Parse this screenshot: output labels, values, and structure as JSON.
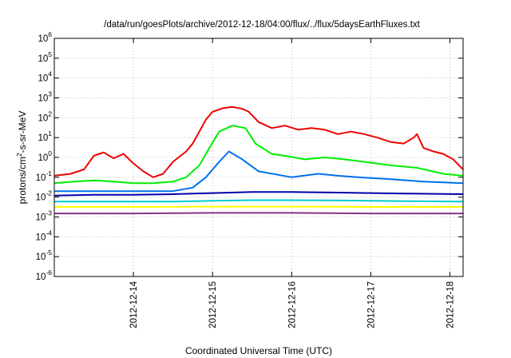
{
  "chart_data": {
    "type": "line",
    "title": "/data/run/goesPlots/archive/2012-12-18/04:00/flux/../flux/5daysEarthFluxes.txt",
    "xlabel": "Coordinated Universal Time (UTC)",
    "ylabel": "protons/cm²-s-sr-MeV",
    "xlim": [
      "2012-12-13 00:00",
      "2012-12-18 04:00"
    ],
    "x_ticks": [
      "2012-12-14",
      "2012-12-15",
      "2012-12-16",
      "2012-12-17",
      "2012-12-18"
    ],
    "yscale": "log",
    "ylim": [
      1e-06,
      1000000
    ],
    "y_ticks": [
      "10-6",
      "10-5",
      "10-4",
      "10-3",
      "10-2",
      "10-1",
      "100",
      "101",
      "102",
      "103",
      "104",
      "105",
      "106"
    ],
    "grid": true,
    "series": [
      {
        "color": "#ee0000",
        "points": [
          [
            "2012-12-13 00:00",
            0.12
          ],
          [
            "2012-12-13 05:00",
            0.15
          ],
          [
            "2012-12-13 09:00",
            0.25
          ],
          [
            "2012-12-13 12:00",
            1.2
          ],
          [
            "2012-12-13 15:00",
            1.8
          ],
          [
            "2012-12-13 18:00",
            0.9
          ],
          [
            "2012-12-13 21:00",
            1.5
          ],
          [
            "2012-12-14 00:00",
            0.5
          ],
          [
            "2012-12-14 03:00",
            0.2
          ],
          [
            "2012-12-14 06:00",
            0.1
          ],
          [
            "2012-12-14 09:00",
            0.15
          ],
          [
            "2012-12-14 12:00",
            0.6
          ],
          [
            "2012-12-14 16:00",
            2
          ],
          [
            "2012-12-14 18:00",
            5
          ],
          [
            "2012-12-14 20:00",
            20
          ],
          [
            "2012-12-14 22:00",
            80
          ],
          [
            "2012-12-15 00:00",
            200
          ],
          [
            "2012-12-15 03:00",
            300
          ],
          [
            "2012-12-15 06:00",
            350
          ],
          [
            "2012-12-15 09:00",
            280
          ],
          [
            "2012-12-15 11:00",
            200
          ],
          [
            "2012-12-15 14:00",
            60
          ],
          [
            "2012-12-15 18:00",
            30
          ],
          [
            "2012-12-15 22:00",
            40
          ],
          [
            "2012-12-16 02:00",
            25
          ],
          [
            "2012-12-16 06:00",
            30
          ],
          [
            "2012-12-16 10:00",
            25
          ],
          [
            "2012-12-16 14:00",
            15
          ],
          [
            "2012-12-16 18:00",
            20
          ],
          [
            "2012-12-16 22:00",
            15
          ],
          [
            "2012-12-17 02:00",
            10
          ],
          [
            "2012-12-17 06:00",
            6
          ],
          [
            "2012-12-17 10:00",
            5
          ],
          [
            "2012-12-17 13:00",
            10
          ],
          [
            "2012-12-17 14:00",
            15
          ],
          [
            "2012-12-17 16:00",
            3
          ],
          [
            "2012-12-17 19:00",
            2
          ],
          [
            "2012-12-17 22:00",
            1.5
          ],
          [
            "2012-12-18 01:00",
            0.8
          ],
          [
            "2012-12-18 04:00",
            0.25
          ]
        ]
      },
      {
        "color": "#00ee00",
        "points": [
          [
            "2012-12-13 00:00",
            0.05
          ],
          [
            "2012-12-13 06:00",
            0.06
          ],
          [
            "2012-12-13 12:00",
            0.07
          ],
          [
            "2012-12-13 18:00",
            0.06
          ],
          [
            "2012-12-14 00:00",
            0.05
          ],
          [
            "2012-12-14 06:00",
            0.05
          ],
          [
            "2012-12-14 12:00",
            0.06
          ],
          [
            "2012-12-14 16:00",
            0.1
          ],
          [
            "2012-12-14 20:00",
            0.4
          ],
          [
            "2012-12-14 23:00",
            3
          ],
          [
            "2012-12-15 02:00",
            20
          ],
          [
            "2012-12-15 06:00",
            40
          ],
          [
            "2012-12-15 10:00",
            30
          ],
          [
            "2012-12-15 13:00",
            5
          ],
          [
            "2012-12-15 18:00",
            1.5
          ],
          [
            "2012-12-15 22:00",
            1.2
          ],
          [
            "2012-12-16 04:00",
            0.8
          ],
          [
            "2012-12-16 10:00",
            1
          ],
          [
            "2012-12-16 16:00",
            0.8
          ],
          [
            "2012-12-16 22:00",
            0.6
          ],
          [
            "2012-12-17 06:00",
            0.4
          ],
          [
            "2012-12-17 14:00",
            0.3
          ],
          [
            "2012-12-17 22:00",
            0.15
          ],
          [
            "2012-12-18 04:00",
            0.12
          ]
        ]
      },
      {
        "color": "#0070ee",
        "points": [
          [
            "2012-12-13 00:00",
            0.02
          ],
          [
            "2012-12-13 06:00",
            0.02
          ],
          [
            "2012-12-13 12:00",
            0.02
          ],
          [
            "2012-12-13 18:00",
            0.02
          ],
          [
            "2012-12-14 00:00",
            0.02
          ],
          [
            "2012-12-14 06:00",
            0.02
          ],
          [
            "2012-12-14 12:00",
            0.02
          ],
          [
            "2012-12-14 18:00",
            0.03
          ],
          [
            "2012-12-14 22:00",
            0.1
          ],
          [
            "2012-12-15 02:00",
            0.6
          ],
          [
            "2012-12-15 05:00",
            2
          ],
          [
            "2012-12-15 09:00",
            0.8
          ],
          [
            "2012-12-15 14:00",
            0.2
          ],
          [
            "2012-12-16 00:00",
            0.1
          ],
          [
            "2012-12-16 08:00",
            0.15
          ],
          [
            "2012-12-16 14:00",
            0.12
          ],
          [
            "2012-12-16 20:00",
            0.1
          ],
          [
            "2012-12-17 06:00",
            0.08
          ],
          [
            "2012-12-17 16:00",
            0.06
          ],
          [
            "2012-12-18 04:00",
            0.05
          ]
        ]
      },
      {
        "color": "#0000aa",
        "points": [
          [
            "2012-12-13 00:00",
            0.012
          ],
          [
            "2012-12-13 12:00",
            0.013
          ],
          [
            "2012-12-14 00:00",
            0.013
          ],
          [
            "2012-12-14 12:00",
            0.014
          ],
          [
            "2012-12-15 00:00",
            0.016
          ],
          [
            "2012-12-15 12:00",
            0.018
          ],
          [
            "2012-12-16 00:00",
            0.018
          ],
          [
            "2012-12-16 12:00",
            0.017
          ],
          [
            "2012-12-17 00:00",
            0.016
          ],
          [
            "2012-12-17 12:00",
            0.015
          ],
          [
            "2012-12-18 04:00",
            0.014
          ]
        ]
      },
      {
        "color": "#00cccc",
        "points": [
          [
            "2012-12-13 00:00",
            0.006
          ],
          [
            "2012-12-13 12:00",
            0.006
          ],
          [
            "2012-12-14 00:00",
            0.006
          ],
          [
            "2012-12-14 12:00",
            0.006
          ],
          [
            "2012-12-15 00:00",
            0.0065
          ],
          [
            "2012-12-15 12:00",
            0.007
          ],
          [
            "2012-12-16 00:00",
            0.007
          ],
          [
            "2012-12-16 12:00",
            0.0068
          ],
          [
            "2012-12-17 00:00",
            0.0065
          ],
          [
            "2012-12-17 12:00",
            0.0062
          ],
          [
            "2012-12-18 04:00",
            0.006
          ]
        ]
      },
      {
        "color": "#ffff00",
        "points": [
          [
            "2012-12-13 00:00",
            0.0032
          ],
          [
            "2012-12-14 00:00",
            0.0032
          ],
          [
            "2012-12-15 00:00",
            0.0033
          ],
          [
            "2012-12-16 00:00",
            0.0033
          ],
          [
            "2012-12-17 00:00",
            0.0032
          ],
          [
            "2012-12-18 04:00",
            0.0032
          ]
        ]
      },
      {
        "color": "#883388",
        "points": [
          [
            "2012-12-13 00:00",
            0.0015
          ],
          [
            "2012-12-14 00:00",
            0.0015
          ],
          [
            "2012-12-15 00:00",
            0.0016
          ],
          [
            "2012-12-16 00:00",
            0.0016
          ],
          [
            "2012-12-17 00:00",
            0.0015
          ],
          [
            "2012-12-18 04:00",
            0.0015
          ]
        ]
      }
    ]
  }
}
